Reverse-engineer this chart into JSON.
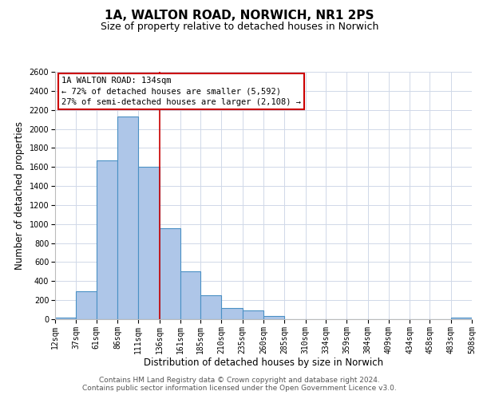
{
  "title": "1A, WALTON ROAD, NORWICH, NR1 2PS",
  "subtitle": "Size of property relative to detached houses in Norwich",
  "xlabel": "Distribution of detached houses by size in Norwich",
  "ylabel": "Number of detached properties",
  "bar_left_edges": [
    12,
    37,
    61,
    86,
    111,
    136,
    161,
    185,
    210,
    235,
    260,
    285,
    310,
    334,
    359,
    384,
    409,
    434,
    458,
    483
  ],
  "bar_widths": [
    25,
    24,
    25,
    25,
    25,
    25,
    24,
    25,
    25,
    25,
    25,
    25,
    24,
    25,
    25,
    25,
    25,
    24,
    25,
    25
  ],
  "bar_heights": [
    20,
    295,
    1670,
    2130,
    1600,
    960,
    505,
    250,
    120,
    95,
    30,
    0,
    0,
    0,
    0,
    0,
    0,
    0,
    0,
    20
  ],
  "bar_facecolor": "#aec6e8",
  "bar_edgecolor": "#4a90c4",
  "bar_linewidth": 0.8,
  "vline_x": 136,
  "vline_color": "#cc0000",
  "vline_linewidth": 1.2,
  "ylim": [
    0,
    2600
  ],
  "yticks": [
    0,
    200,
    400,
    600,
    800,
    1000,
    1200,
    1400,
    1600,
    1800,
    2000,
    2200,
    2400,
    2600
  ],
  "xtick_labels": [
    "12sqm",
    "37sqm",
    "61sqm",
    "86sqm",
    "111sqm",
    "136sqm",
    "161sqm",
    "185sqm",
    "210sqm",
    "235sqm",
    "260sqm",
    "285sqm",
    "310sqm",
    "334sqm",
    "359sqm",
    "384sqm",
    "409sqm",
    "434sqm",
    "458sqm",
    "483sqm",
    "508sqm"
  ],
  "xtick_positions": [
    12,
    37,
    61,
    86,
    111,
    136,
    161,
    185,
    210,
    235,
    260,
    285,
    310,
    334,
    359,
    384,
    409,
    434,
    458,
    483,
    508
  ],
  "annotation_box_text": "1A WALTON ROAD: 134sqm\n← 72% of detached houses are smaller (5,592)\n27% of semi-detached houses are larger (2,108) →",
  "annotation_box_color": "#cc0000",
  "grid_color": "#d0d8e8",
  "background_color": "#ffffff",
  "footer_line1": "Contains HM Land Registry data © Crown copyright and database right 2024.",
  "footer_line2": "Contains public sector information licensed under the Open Government Licence v3.0.",
  "title_fontsize": 11,
  "subtitle_fontsize": 9,
  "xlabel_fontsize": 8.5,
  "ylabel_fontsize": 8.5,
  "tick_fontsize": 7,
  "annotation_fontsize": 7.5,
  "footer_fontsize": 6.5
}
